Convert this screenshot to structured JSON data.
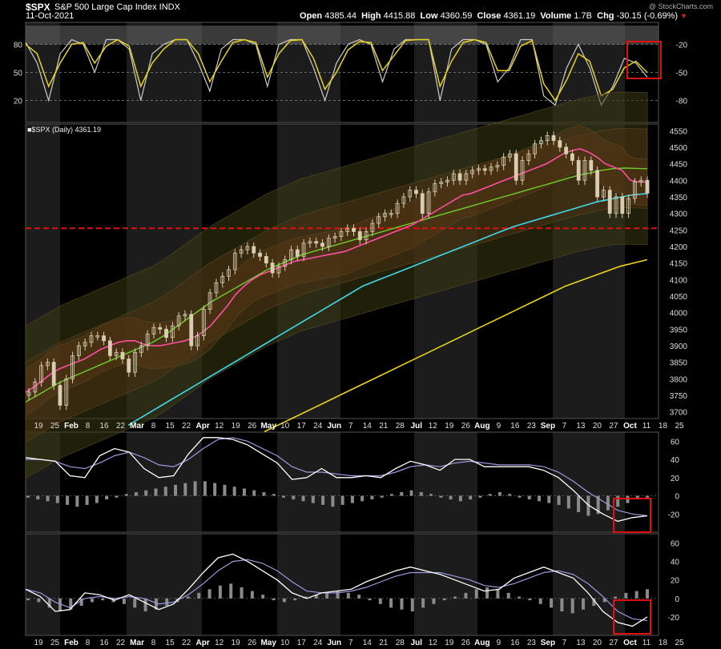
{
  "header": {
    "symbol": "$SPX",
    "description": "S&P 500 Large Cap Index  INDX",
    "date": "11-Oct-2021",
    "watermark": "@ StockCharts.com",
    "quote": {
      "open_label": "Open",
      "open": "4385.44",
      "high_label": "High",
      "high": "4415.88",
      "low_label": "Low",
      "low": "4360.59",
      "close_label": "Close",
      "close": "4361.19",
      "volume_label": "Volume",
      "volume": "1.7B",
      "chg_label": "Chg",
      "chg": "-30.15 (-0.69%)"
    }
  },
  "colors": {
    "background": "#000000",
    "shade_band": "#1c1c1c",
    "price_bar": "#d8cdb0",
    "ma20": "#ff4fa3",
    "ma50": "#6ccf2a",
    "ma100": "#3fd8e8",
    "ma200": "#e8d21a",
    "support_line": "#e01010",
    "stoch_fast": "#e8d21a",
    "stoch_slow": "#cccccc",
    "highlight_box": "#e01010"
  },
  "chart_data": [
    {
      "type": "line",
      "name": "stochastic",
      "ylim": [
        0,
        100
      ],
      "y_ticks_left": [
        "80",
        "50",
        "20"
      ],
      "y_ticks_right": [
        "-20",
        "-50",
        "-80"
      ],
      "series": [
        {
          "values": [
            82,
            60,
            20,
            70,
            85,
            80,
            50,
            85,
            85,
            75,
            20,
            70,
            80,
            85,
            85,
            60,
            30,
            75,
            85,
            85,
            80,
            35,
            80,
            85,
            85,
            55,
            20,
            60,
            80,
            85,
            80,
            40,
            75,
            85,
            85,
            85,
            20,
            75,
            85,
            85,
            80,
            40,
            55,
            85,
            85,
            25,
            15,
            55,
            80,
            55,
            15,
            35,
            65,
            60,
            45
          ]
        },
        {
          "values": [
            80,
            70,
            35,
            60,
            80,
            82,
            60,
            78,
            85,
            78,
            35,
            60,
            75,
            85,
            85,
            70,
            40,
            62,
            82,
            85,
            82,
            45,
            70,
            84,
            85,
            65,
            32,
            50,
            74,
            83,
            82,
            52,
            68,
            84,
            85,
            85,
            35,
            62,
            82,
            85,
            82,
            52,
            52,
            78,
            84,
            38,
            20,
            42,
            70,
            62,
            25,
            32,
            55,
            62,
            50
          ]
        }
      ]
    },
    {
      "type": "candlestick",
      "name": "$SPX (Daily)",
      "last": "4361.19",
      "ylim": [
        3680,
        4570
      ],
      "y_ticks": [
        3700,
        3750,
        3800,
        3850,
        3900,
        3950,
        4000,
        4050,
        4100,
        4150,
        4200,
        4250,
        4300,
        4350,
        4400,
        4450,
        4500,
        4550
      ],
      "x_labels": [
        "19",
        "25",
        "Feb",
        "8",
        "16",
        "22",
        "Mar",
        "8",
        "15",
        "22",
        "Apr",
        "12",
        "19",
        "26",
        "May",
        "10",
        "17",
        "24",
        "Jun",
        "7",
        "14",
        "21",
        "28",
        "Jul",
        "12",
        "19",
        "26",
        "Aug",
        "9",
        "16",
        "23",
        "Sep",
        "7",
        "13",
        "20",
        "27",
        "Oct",
        "11",
        "18",
        "25"
      ],
      "support_level": 4255,
      "close": [
        3760,
        3790,
        3840,
        3850,
        3780,
        3720,
        3800,
        3870,
        3900,
        3910,
        3930,
        3930,
        3915,
        3870,
        3880,
        3860,
        3820,
        3880,
        3900,
        3935,
        3955,
        3950,
        3925,
        3960,
        3990,
        3995,
        3900,
        3930,
        4010,
        4060,
        4090,
        4110,
        4130,
        4180,
        4190,
        4200,
        4180,
        4170,
        4150,
        4120,
        4140,
        4160,
        4190,
        4170,
        4210,
        4215,
        4210,
        4200,
        4225,
        4230,
        4245,
        4255,
        4245,
        4220,
        4245,
        4270,
        4290,
        4300,
        4300,
        4330,
        4350,
        4370,
        4360,
        4300,
        4365,
        4390,
        4395,
        4400,
        4420,
        4400,
        4420,
        4430,
        4435,
        4430,
        4440,
        4445,
        4470,
        4480,
        4400,
        4460,
        4480,
        4510,
        4520,
        4535,
        4520,
        4500,
        4480,
        4460,
        4400,
        4460,
        4430,
        4350,
        4370,
        4300,
        4350,
        4300,
        4345,
        4395,
        4400,
        4361
      ]
    },
    {
      "type": "line",
      "name": "ma20",
      "values": [
        3760,
        3775,
        3795,
        3815,
        3830,
        3840,
        3850,
        3860,
        3875,
        3890,
        3900,
        3910,
        3915,
        3915,
        3905,
        3900,
        3900,
        3905,
        3910,
        3915,
        3925,
        3940,
        3960,
        3990,
        4020,
        4055,
        4080,
        4100,
        4115,
        4125,
        4135,
        4145,
        4155,
        4160,
        4165,
        4170,
        4175,
        4180,
        4185,
        4195,
        4205,
        4215,
        4225,
        4235,
        4245,
        4255,
        4265,
        4280,
        4295,
        4310,
        4325,
        4340,
        4355,
        4360,
        4370,
        4380,
        4390,
        4400,
        4410,
        4420,
        4430,
        4440,
        4450,
        4465,
        4480,
        4490,
        4495,
        4485,
        4470,
        4450,
        4440,
        4430,
        4400,
        4395,
        4395
      ]
    },
    {
      "type": "line",
      "name": "ma50",
      "values": [
        3730,
        3750,
        3770,
        3790,
        3805,
        3820,
        3835,
        3850,
        3865,
        3880,
        3895,
        3910,
        3930,
        3955,
        3980,
        4005,
        4030,
        4050,
        4070,
        4090,
        4110,
        4130,
        4145,
        4160,
        4175,
        4185,
        4195,
        4205,
        4215,
        4225,
        4235,
        4245,
        4255,
        4265,
        4275,
        4285,
        4295,
        4305,
        4315,
        4325,
        4335,
        4345,
        4355,
        4365,
        4375,
        4385,
        4395,
        4405,
        4415,
        4422,
        4430,
        4435,
        4437,
        4436,
        4435
      ]
    },
    {
      "type": "line",
      "name": "ma100",
      "values": [
        3660,
        3690,
        3720,
        3750,
        3780,
        3810,
        3840,
        3870,
        3900,
        3930,
        3960,
        3990,
        4020,
        4050,
        4080,
        4100,
        4120,
        4140,
        4160,
        4180,
        4200,
        4220,
        4240,
        4260,
        4275,
        4290,
        4305,
        4320,
        4335,
        4345,
        4355,
        4360
      ]
    },
    {
      "type": "line",
      "name": "ma200",
      "values": [
        3640,
        3680,
        3720,
        3760,
        3800,
        3840,
        3880,
        3920,
        3960,
        4000,
        4040,
        4080,
        4110,
        4140,
        4160
      ]
    },
    {
      "type": "bar",
      "name": "macd-1",
      "ylim": [
        -40,
        70
      ],
      "y_ticks": [
        "60",
        "40",
        "20",
        "0",
        "-20"
      ],
      "histogram": [
        -2,
        -4,
        -6,
        -8,
        -10,
        -12,
        -10,
        -8,
        -4,
        -2,
        2,
        4,
        6,
        8,
        10,
        12,
        14,
        16,
        16,
        14,
        12,
        10,
        8,
        6,
        4,
        2,
        -2,
        -4,
        -6,
        -8,
        -10,
        -12,
        -10,
        -8,
        -6,
        -4,
        -2,
        2,
        4,
        6,
        4,
        2,
        -2,
        -4,
        -6,
        -4,
        -2,
        2,
        4,
        2,
        -2,
        -4,
        -6,
        -8,
        -10,
        -14,
        -18,
        -22,
        -20,
        -16,
        -12,
        -8,
        -4,
        -2
      ],
      "macd": [
        42,
        40,
        38,
        22,
        20,
        44,
        52,
        48,
        30,
        20,
        22,
        46,
        64,
        64,
        62,
        56,
        46,
        36,
        18,
        20,
        30,
        20,
        20,
        22,
        20,
        30,
        38,
        34,
        28,
        40,
        40,
        32,
        32,
        32,
        32,
        28,
        20,
        6,
        -10,
        -20,
        -28,
        -24,
        -22
      ],
      "signal": [
        40,
        40,
        38,
        32,
        30,
        36,
        44,
        48,
        42,
        34,
        32,
        40,
        52,
        62,
        64,
        60,
        52,
        44,
        32,
        26,
        26,
        24,
        22,
        22,
        22,
        26,
        32,
        34,
        32,
        36,
        38,
        36,
        34,
        34,
        34,
        32,
        26,
        16,
        4,
        -6,
        -16,
        -20,
        -22
      ]
    },
    {
      "type": "bar",
      "name": "macd-2",
      "ylim": [
        -40,
        70
      ],
      "y_ticks": [
        "60",
        "40",
        "20",
        "0",
        "-20"
      ],
      "histogram": [
        -2,
        -4,
        -10,
        -14,
        -12,
        -8,
        -4,
        -2,
        -4,
        -6,
        -10,
        -14,
        -12,
        -8,
        -4,
        2,
        6,
        10,
        14,
        16,
        12,
        8,
        4,
        -2,
        -4,
        -2,
        2,
        4,
        6,
        8,
        6,
        4,
        -2,
        -6,
        -10,
        -12,
        -14,
        -10,
        -6,
        -2,
        2,
        6,
        10,
        12,
        10,
        6,
        2,
        -2,
        -6,
        -10,
        -14,
        -16,
        -12,
        -8,
        -4,
        2,
        6,
        8,
        10
      ],
      "macd": [
        10,
        2,
        -14,
        -12,
        6,
        4,
        -2,
        4,
        -4,
        -12,
        -6,
        10,
        28,
        44,
        48,
        40,
        30,
        20,
        6,
        0,
        6,
        8,
        10,
        18,
        24,
        30,
        34,
        30,
        26,
        20,
        14,
        8,
        10,
        22,
        28,
        34,
        28,
        22,
        6,
        -14,
        -26,
        -30,
        -20
      ],
      "signal": [
        10,
        6,
        -4,
        -10,
        0,
        2,
        0,
        2,
        0,
        -6,
        -4,
        4,
        16,
        30,
        40,
        42,
        38,
        30,
        18,
        8,
        6,
        6,
        8,
        12,
        18,
        24,
        28,
        28,
        28,
        24,
        20,
        14,
        12,
        16,
        22,
        28,
        30,
        26,
        16,
        2,
        -14,
        -22,
        -24
      ]
    }
  ]
}
